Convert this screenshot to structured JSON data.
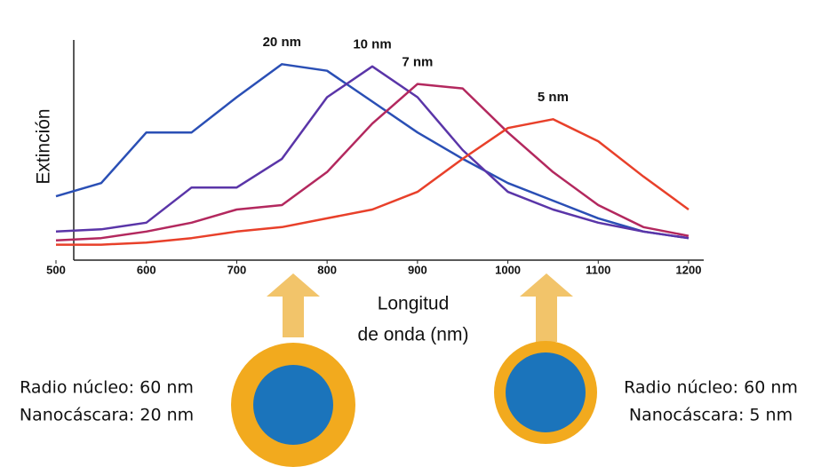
{
  "chart_data": {
    "type": "line",
    "ylabel": "Extinción",
    "xlabel": [
      "Longitud",
      "de onda (nm)"
    ],
    "x": [
      500,
      550,
      600,
      650,
      700,
      750,
      800,
      850,
      900,
      950,
      1000,
      1050,
      1100,
      1150,
      1200
    ],
    "xlim": [
      500,
      1200
    ],
    "xticks": [
      500,
      600,
      700,
      800,
      900,
      1000,
      1100,
      1200
    ],
    "ylim": [
      0,
      1
    ],
    "series": [
      {
        "name": "20 nm",
        "color": "#2a4fb5",
        "values": [
          0.29,
          0.35,
          0.58,
          0.58,
          0.74,
          0.89,
          0.86,
          0.72,
          0.58,
          0.46,
          0.35,
          0.27,
          0.19,
          0.13,
          0.1
        ]
      },
      {
        "name": "10 nm",
        "color": "#5a35a8",
        "values": [
          0.13,
          0.14,
          0.17,
          0.33,
          0.33,
          0.46,
          0.74,
          0.88,
          0.74,
          0.5,
          0.31,
          0.23,
          0.17,
          0.13,
          0.1
        ]
      },
      {
        "name": "7 nm",
        "color": "#b3285e",
        "values": [
          0.09,
          0.1,
          0.13,
          0.17,
          0.23,
          0.25,
          0.4,
          0.62,
          0.8,
          0.78,
          0.58,
          0.4,
          0.25,
          0.15,
          0.11
        ]
      },
      {
        "name": "5 nm",
        "color": "#e8402a",
        "values": [
          0.07,
          0.07,
          0.08,
          0.1,
          0.13,
          0.15,
          0.19,
          0.23,
          0.31,
          0.46,
          0.6,
          0.64,
          0.54,
          0.38,
          0.23
        ]
      }
    ],
    "annotations": [
      [
        "Radio núcleo: 60 nm",
        "Nanocáscara: 20 nm"
      ],
      [
        "Radio núcleo: 60 nm",
        "Nanocáscara: 5 nm"
      ]
    ]
  }
}
